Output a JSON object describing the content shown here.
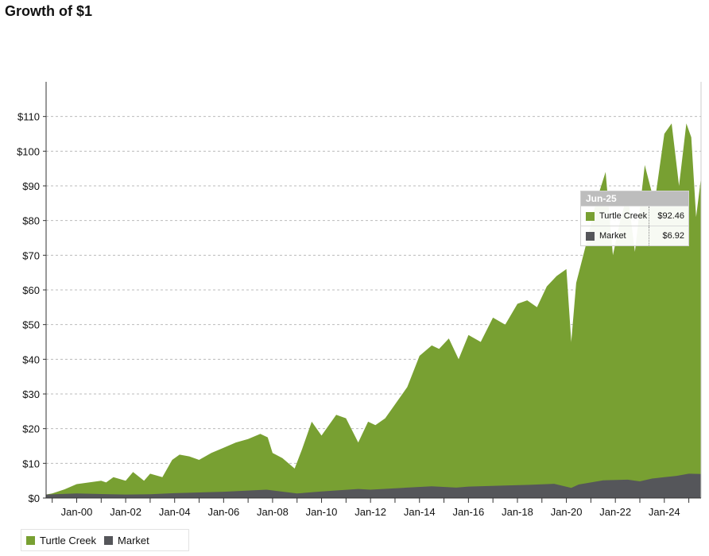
{
  "title": "Growth of $1",
  "colors": {
    "turtle_creek": "#78a032",
    "market": "#55565a",
    "grid": "#bbbbbb"
  },
  "tooltip": {
    "date": "Jun-25",
    "rows": [
      {
        "name": "Turtle Creek",
        "value": "$92.46"
      },
      {
        "name": "Market",
        "value": "$6.92"
      }
    ]
  },
  "chart_data": {
    "type": "area",
    "title": "Growth of $1",
    "xlabel": "",
    "ylabel": "",
    "ylim": [
      0,
      120
    ],
    "grid": true,
    "legend_position": "bottom-left",
    "y_ticks": [
      0,
      10,
      20,
      30,
      40,
      50,
      60,
      70,
      80,
      90,
      100,
      110
    ],
    "y_tick_labels": [
      "$0",
      "$10",
      "$20",
      "$30",
      "$40",
      "$50",
      "$60",
      "$70",
      "$80",
      "$90",
      "$100",
      "$110"
    ],
    "x_range": [
      1998.75,
      2025.5
    ],
    "x_ticks": [
      2000,
      2002,
      2004,
      2006,
      2008,
      2010,
      2012,
      2014,
      2016,
      2018,
      2020,
      2022,
      2024
    ],
    "x_tick_labels": [
      "Jan-00",
      "Jan-02",
      "Jan-04",
      "Jan-06",
      "Jan-08",
      "Jan-10",
      "Jan-12",
      "Jan-14",
      "Jan-16",
      "Jan-18",
      "Jan-20",
      "Jan-22",
      "Jan-24"
    ],
    "series": [
      {
        "name": "Turtle Creek",
        "x": [
          1998.75,
          1999.0,
          1999.5,
          2000.0,
          2000.5,
          2001.0,
          2001.2,
          2001.5,
          2002.0,
          2002.3,
          2002.75,
          2003.0,
          2003.5,
          2003.9,
          2004.2,
          2004.6,
          2005.0,
          2005.5,
          2006.0,
          2006.5,
          2007.0,
          2007.5,
          2007.8,
          2008.0,
          2008.4,
          2008.9,
          2009.2,
          2009.6,
          2010.0,
          2010.3,
          2010.6,
          2011.0,
          2011.5,
          2011.9,
          2012.2,
          2012.6,
          2013.0,
          2013.5,
          2014.0,
          2014.5,
          2014.8,
          2015.2,
          2015.6,
          2016.0,
          2016.5,
          2017.0,
          2017.5,
          2018.0,
          2018.4,
          2018.8,
          2019.2,
          2019.6,
          2020.0,
          2020.2,
          2020.4,
          2020.8,
          2021.2,
          2021.6,
          2021.9,
          2022.2,
          2022.5,
          2022.8,
          2023.2,
          2023.6,
          2024.0,
          2024.3,
          2024.6,
          2024.9,
          2025.1,
          2025.3,
          2025.5
        ],
        "values": [
          1.0,
          1.3,
          2.5,
          4.0,
          4.5,
          5.0,
          4.5,
          6.0,
          5.0,
          7.5,
          5.0,
          7.0,
          6.0,
          11.0,
          12.5,
          12.0,
          11.0,
          13.0,
          14.5,
          16.0,
          17.0,
          18.5,
          17.5,
          13.0,
          11.5,
          8.5,
          14.0,
          22.0,
          18.0,
          21.0,
          24.0,
          23.0,
          16.0,
          22.0,
          21.0,
          23.0,
          27.0,
          32.0,
          41.0,
          44.0,
          43.0,
          46.0,
          40.0,
          47.0,
          45.0,
          52.0,
          50.0,
          56.0,
          57.0,
          55.0,
          61.0,
          64.0,
          66.0,
          45.0,
          62.0,
          73.0,
          85.0,
          94.0,
          70.0,
          80.0,
          88.0,
          71.0,
          96.0,
          85.0,
          105.0,
          108.0,
          90.0,
          108.0,
          104.0,
          81.0,
          92.46
        ]
      },
      {
        "name": "Market",
        "x": [
          1998.75,
          2000.0,
          2002.0,
          2003.0,
          2004.0,
          2006.0,
          2007.75,
          2009.0,
          2010.0,
          2011.5,
          2012.0,
          2013.5,
          2014.5,
          2015.5,
          2016.0,
          2017.5,
          2018.5,
          2019.5,
          2020.2,
          2020.5,
          2021.5,
          2022.5,
          2023.0,
          2023.5,
          2024.0,
          2024.5,
          2025.0,
          2025.5
        ],
        "values": [
          1.0,
          1.3,
          1.0,
          1.1,
          1.4,
          1.8,
          2.4,
          1.3,
          1.9,
          2.6,
          2.4,
          3.0,
          3.4,
          3.0,
          3.3,
          3.6,
          3.8,
          4.1,
          2.9,
          3.9,
          5.1,
          5.3,
          4.8,
          5.6,
          6.0,
          6.4,
          7.0,
          6.92
        ]
      }
    ]
  }
}
